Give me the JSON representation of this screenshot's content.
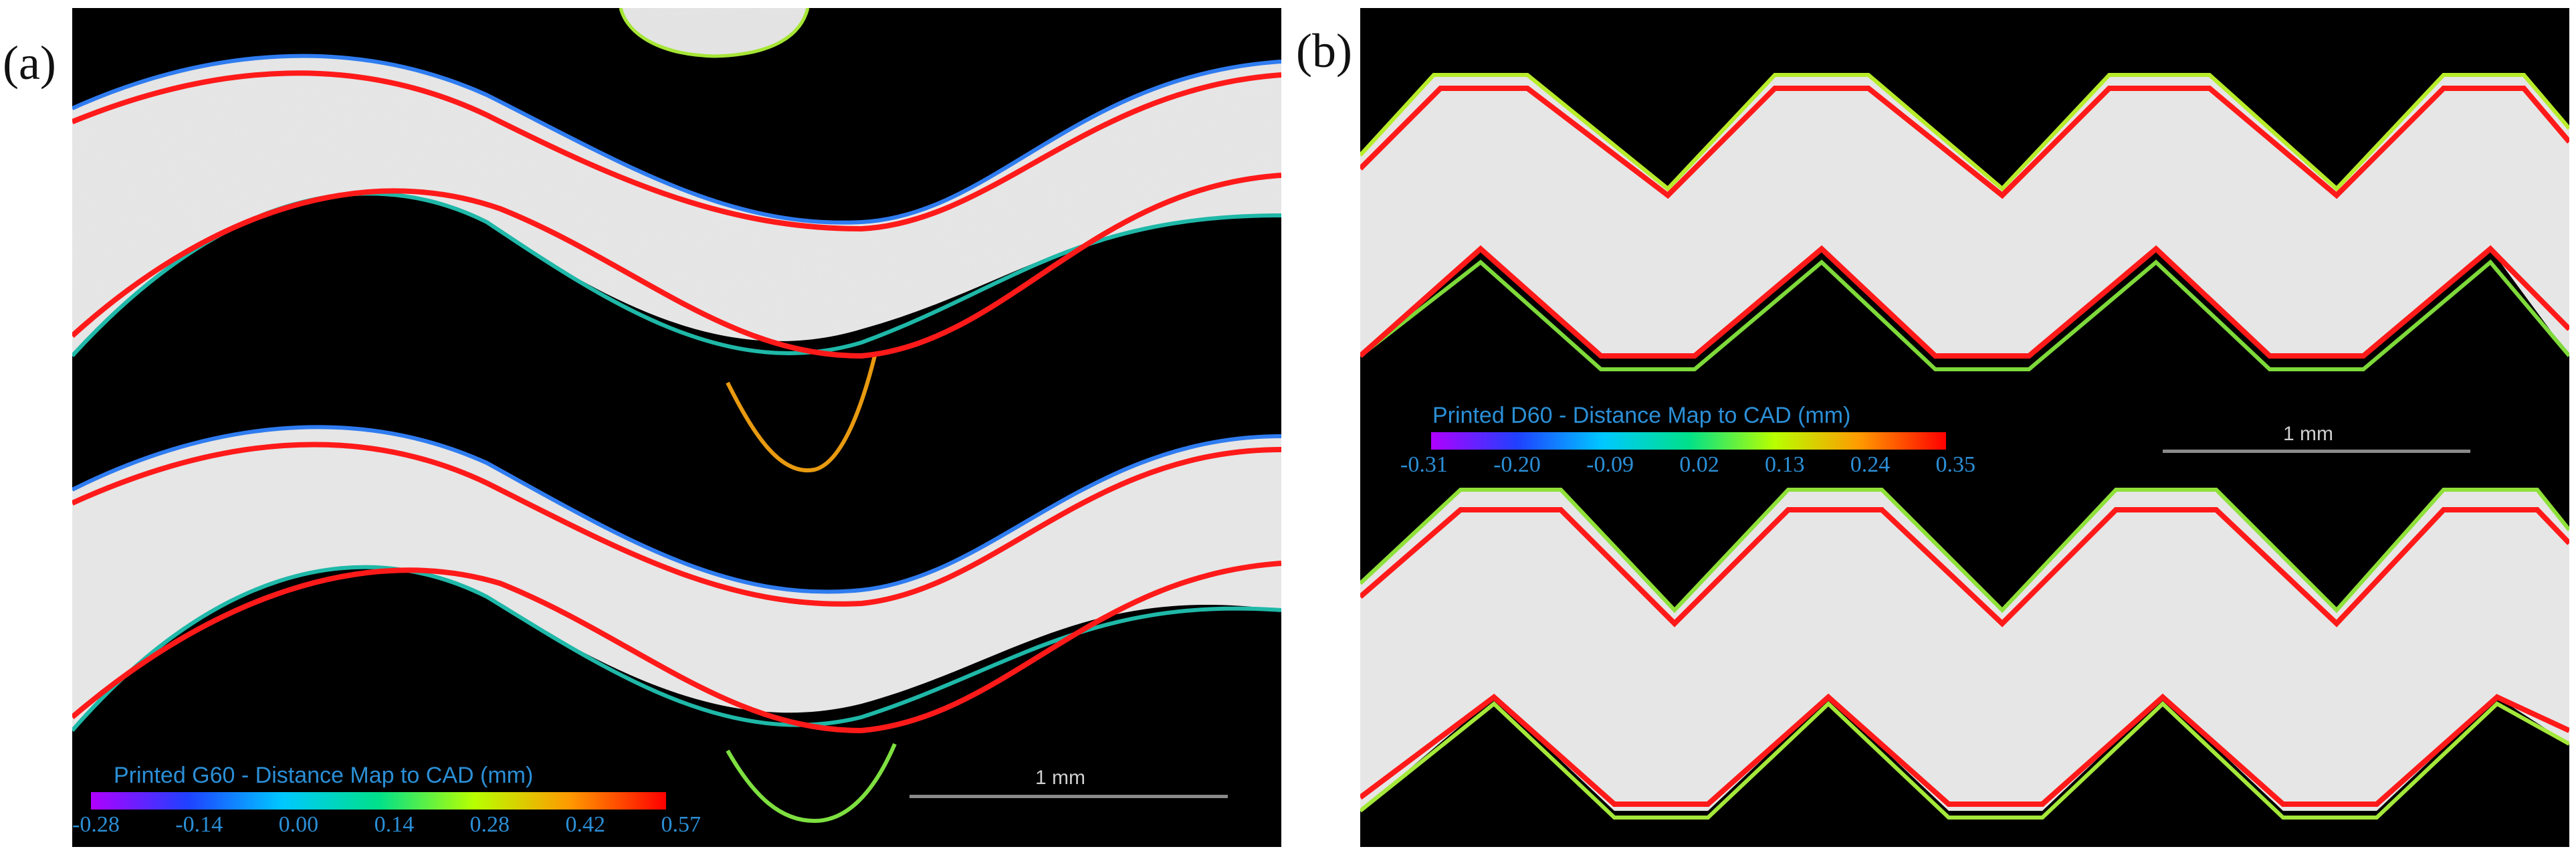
{
  "panels": [
    {
      "label": "(a)",
      "legend_title": "Printed G60 - Distance Map to CAD (mm)",
      "ticks": [
        "-0.28",
        "-0.14",
        "0.00",
        "0.14",
        "0.28",
        "0.42",
        "0.57"
      ],
      "scale_bar_label": "1 mm",
      "pattern": "gyroid sine-wave struts",
      "cad_outline_color": "#ff1a1a"
    },
    {
      "label": "(b)",
      "legend_title": "Printed D60 - Distance Map to CAD (mm)",
      "ticks": [
        "-0.31",
        "-0.20",
        "-0.09",
        "0.02",
        "0.13",
        "0.24",
        "0.35"
      ],
      "scale_bar_label": "1 mm",
      "pattern": "diamond zigzag struts",
      "cad_outline_color": "#ff1a1a"
    }
  ],
  "colors": {
    "colorbar_stops": [
      "#b000ff",
      "#2040ff",
      "#00c8ff",
      "#00e08a",
      "#b8ff00",
      "#ff9900",
      "#ff0000"
    ],
    "legend_text": "#2b8fd6"
  }
}
